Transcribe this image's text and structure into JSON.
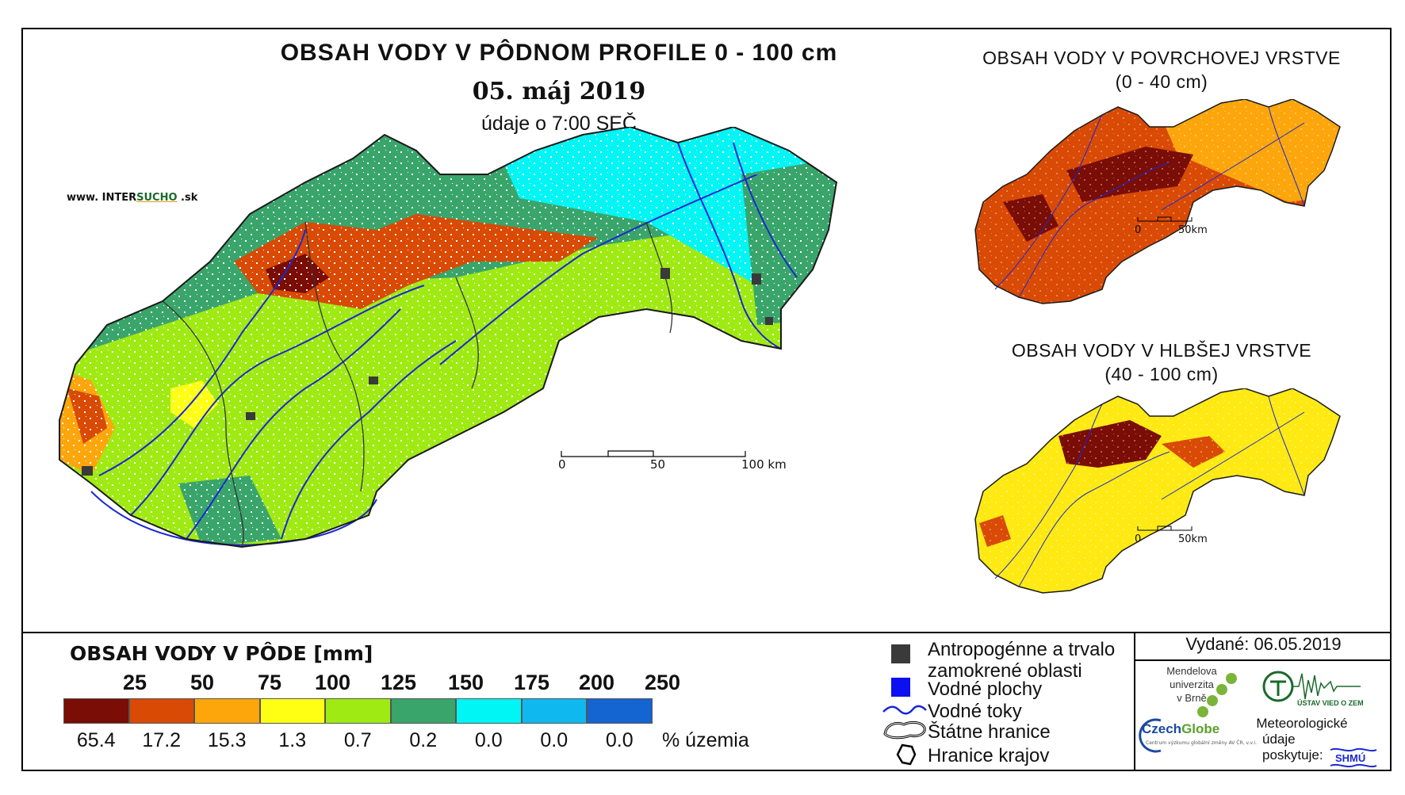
{
  "main_map": {
    "title": "OBSAH VODY V PÔDNOM PROFILE 0 - 100 cm",
    "date": "05. máj 2019",
    "time_note": "údaje o 7:00 SEČ",
    "website_prefix": "www. INTER",
    "website_accent": "SUCHO",
    "website_suffix": " .sk",
    "scale": {
      "labels": [
        "0",
        "50",
        "100 km"
      ]
    }
  },
  "inset_top": {
    "title": "OBSAH VODY V POVRCHOVEJ VRSTVE",
    "subtitle": "(0 - 40 cm)",
    "scale": {
      "labels": [
        "0",
        "50km"
      ]
    }
  },
  "inset_bottom": {
    "title": "OBSAH VODY V HLBŠEJ VRSTVE",
    "subtitle": "(40 - 100 cm)",
    "scale": {
      "labels": [
        "0",
        "50km"
      ]
    }
  },
  "legend": {
    "title": "OBSAH VODY V PÔDE [mm]",
    "thresholds": [
      "25",
      "50",
      "75",
      "100",
      "125",
      "150",
      "175",
      "200",
      "250"
    ],
    "classes": [
      {
        "color": "#7a0d06",
        "percent": "65.4"
      },
      {
        "color": "#d94a05",
        "percent": "17.2"
      },
      {
        "color": "#fca60c",
        "percent": "15.3"
      },
      {
        "color": "#ffff14",
        "percent": "1.3"
      },
      {
        "color": "#a0ea14",
        "percent": "0.7"
      },
      {
        "color": "#3aa56a",
        "percent": "0.2"
      },
      {
        "color": "#00f5f5",
        "percent": "0.0"
      },
      {
        "color": "#10b8f0",
        "percent": "0.0"
      },
      {
        "color": "#1464d2",
        "percent": "0.0"
      }
    ],
    "percent_label": "% územia"
  },
  "symbol_legend": {
    "anthropogenic_line1": "Antropogénne a trvalo",
    "anthropogenic_line2": "zamokrené oblasti",
    "water_bodies": "Vodné plochy",
    "water_streams": "Vodné toky",
    "state_border": "Štátne hranice",
    "region_border": "Hranice krajov",
    "colors": {
      "anthropogenic": "#3a3a3a",
      "water_bodies": "#0a10f0",
      "water_streams": "#1a28d0"
    }
  },
  "footer": {
    "issued": "Vydané: 06.05.2019",
    "mendelu_lines": [
      "Mendelova",
      "univerzita",
      "v Brně"
    ],
    "czechglobe_a": "Czech",
    "czechglobe_b": "Globe",
    "czechglobe_sub": "Centrum výzkumu globální změny AV ČR, v.v.i.",
    "meteo_line1": "Meteorologické",
    "meteo_line2": "údaje",
    "meteo_line3": "poskytuje:",
    "ustav_text": "ÚSTAV VIED O ZEMI",
    "shmu_text": "SHMÚ"
  }
}
